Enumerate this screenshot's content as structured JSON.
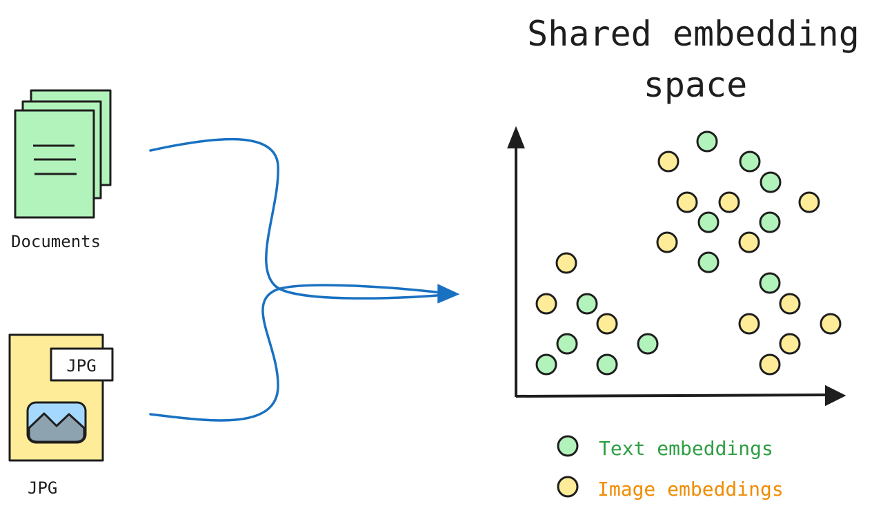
{
  "title_line1": "Shared embedding",
  "title_line2": "space",
  "documents": {
    "label": "Documents",
    "color": "#b2f2bb"
  },
  "image": {
    "label": "JPG",
    "tag": "JPG",
    "color": "#ffec99",
    "sky_color": "#a5d8ff",
    "mountain_color": "#8ea3b0"
  },
  "arrow_color": "#1971c2",
  "legend": [
    {
      "label": "Text embeddings",
      "fill": "#b2f2bb",
      "text_color": "#2f9e44"
    },
    {
      "label": "Image embeddings",
      "fill": "#ffec99",
      "text_color": "#f08c00"
    }
  ]
}
